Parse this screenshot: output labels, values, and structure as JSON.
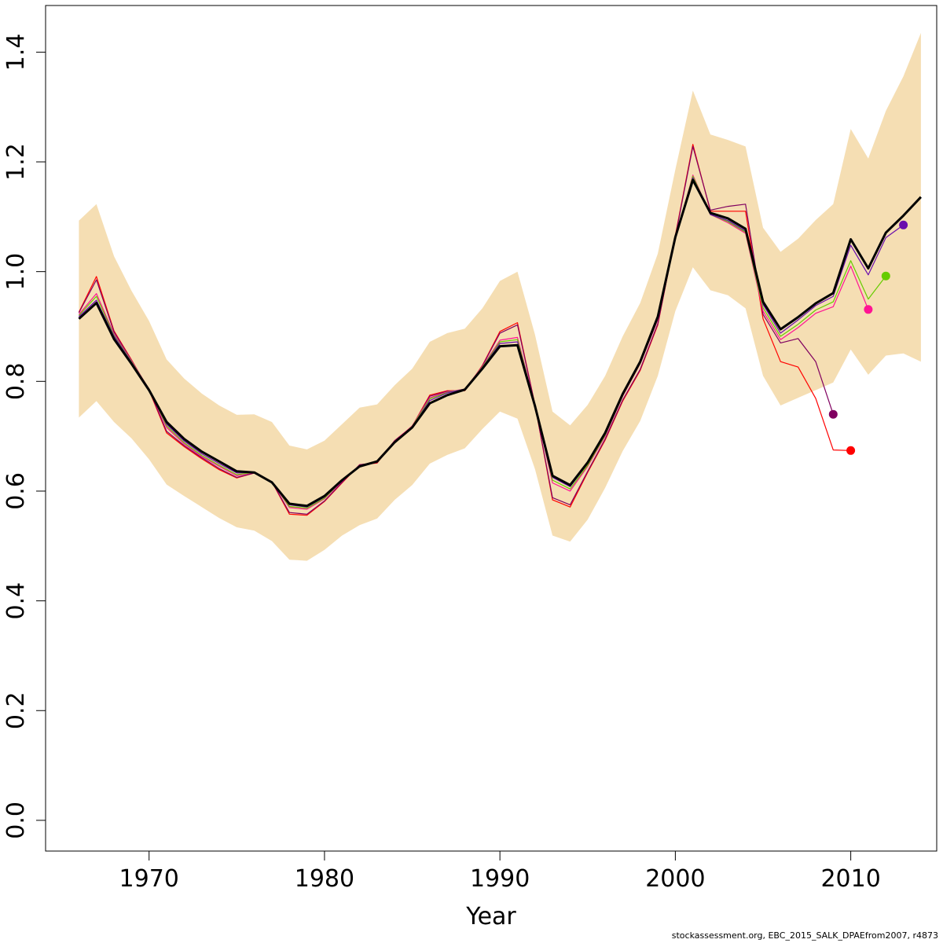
{
  "chart_data": {
    "type": "line",
    "title": "",
    "xlabel": "Year",
    "ylabel": "",
    "xlim": [
      1964.1,
      2014.9
    ],
    "ylim": [
      -0.056,
      1.485
    ],
    "x_ticks": [
      "1970",
      "1980",
      "1990",
      "2000",
      "2010"
    ],
    "y_ticks": [
      "0.0",
      "0.2",
      "0.4",
      "0.6",
      "0.8",
      "1.0",
      "1.2",
      "1.4"
    ],
    "grid": false,
    "legend": "none",
    "colors": {
      "band": "#f5deb3",
      "main": "#000000",
      "peel_2014": "#6a0dad",
      "peel_2013": "#66cc00",
      "peel_2012": "#ff1493",
      "peel_2011": "#800060",
      "peel_2010": "#ff0000"
    },
    "confidence_band": {
      "x": [
        1966,
        1967,
        1968,
        1969,
        1970,
        1971,
        1972,
        1973,
        1974,
        1975,
        1976,
        1977,
        1978,
        1979,
        1980,
        1981,
        1982,
        1983,
        1984,
        1985,
        1986,
        1987,
        1988,
        1989,
        1990,
        1991,
        1992,
        1993,
        1994,
        1995,
        1996,
        1997,
        1998,
        1999,
        2000,
        2001,
        2002,
        2003,
        2004,
        2005,
        2006,
        2007,
        2008,
        2009,
        2010,
        2011,
        2012,
        2013,
        2014
      ],
      "upper": [
        1.093,
        1.123,
        1.028,
        0.965,
        0.91,
        0.84,
        0.805,
        0.778,
        0.756,
        0.739,
        0.74,
        0.726,
        0.683,
        0.676,
        0.692,
        0.722,
        0.752,
        0.758,
        0.793,
        0.823,
        0.872,
        0.888,
        0.896,
        0.933,
        0.983,
        1.0,
        0.885,
        0.745,
        0.72,
        0.757,
        0.81,
        0.882,
        0.943,
        1.033,
        1.186,
        1.33,
        1.25,
        1.24,
        1.228,
        1.08,
        1.036,
        1.06,
        1.094,
        1.123,
        1.26,
        1.206,
        1.293,
        1.356,
        1.435
      ],
      "lower": [
        0.734,
        0.764,
        0.726,
        0.696,
        0.658,
        0.612,
        0.591,
        0.571,
        0.551,
        0.534,
        0.528,
        0.509,
        0.475,
        0.473,
        0.493,
        0.519,
        0.538,
        0.55,
        0.584,
        0.611,
        0.65,
        0.666,
        0.678,
        0.713,
        0.745,
        0.732,
        0.64,
        0.519,
        0.508,
        0.548,
        0.606,
        0.673,
        0.728,
        0.81,
        0.928,
        1.008,
        0.966,
        0.957,
        0.933,
        0.81,
        0.756,
        0.77,
        0.784,
        0.798,
        0.858,
        0.812,
        0.847,
        0.851,
        0.836
      ]
    },
    "series": [
      {
        "x": [
          1966,
          1967,
          1968,
          1969,
          1970,
          1971,
          1972,
          1973,
          1974,
          1975,
          1976,
          1977,
          1978,
          1979,
          1980,
          1981,
          1982,
          1983,
          1984,
          1985,
          1986,
          1987,
          1988,
          1989,
          1990,
          1991,
          1992,
          1993,
          1994,
          1995,
          1996,
          1997,
          1998,
          1999,
          2000,
          2001,
          2002,
          2003,
          2004,
          2005,
          2006,
          2007,
          2008,
          2009,
          2010,
          2011,
          2012,
          2013,
          2014
        ],
        "values": [
          0.914,
          0.943,
          0.877,
          0.832,
          0.784,
          0.726,
          0.695,
          0.672,
          0.654,
          0.636,
          0.634,
          0.616,
          0.577,
          0.573,
          0.591,
          0.62,
          0.645,
          0.654,
          0.689,
          0.716,
          0.76,
          0.775,
          0.785,
          0.823,
          0.864,
          0.866,
          0.755,
          0.628,
          0.611,
          0.652,
          0.706,
          0.777,
          0.836,
          0.918,
          1.063,
          1.167,
          1.107,
          1.097,
          1.078,
          0.945,
          0.895,
          0.917,
          0.942,
          0.961,
          1.059,
          1.006,
          1.071,
          1.102,
          1.136
        ],
        "color": "#000000",
        "width": 3
      },
      {
        "x": [
          1966,
          1967,
          1968,
          1969,
          1970,
          1971,
          1972,
          1973,
          1974,
          1975,
          1976,
          1977,
          1978,
          1979,
          1980,
          1981,
          1982,
          1983,
          1984,
          1985,
          1986,
          1987,
          1988,
          1989,
          1990,
          1991,
          1992,
          1993,
          1994,
          1995,
          1996,
          1997,
          1998,
          1999,
          2000,
          2001,
          2002,
          2003,
          2004,
          2005,
          2006,
          2007,
          2008,
          2009,
          2010,
          2011,
          2012,
          2013
        ],
        "values": [
          0.918,
          0.948,
          0.882,
          0.835,
          0.786,
          0.722,
          0.691,
          0.668,
          0.65,
          0.633,
          0.634,
          0.617,
          0.575,
          0.571,
          0.589,
          0.619,
          0.646,
          0.655,
          0.69,
          0.717,
          0.765,
          0.779,
          0.786,
          0.825,
          0.869,
          0.872,
          0.757,
          0.625,
          0.608,
          0.65,
          0.704,
          0.775,
          0.834,
          0.916,
          1.062,
          1.171,
          1.104,
          1.093,
          1.074,
          0.94,
          0.888,
          0.912,
          0.938,
          0.955,
          1.048,
          0.994,
          1.062,
          1.085
        ],
        "color": "#6a0dad",
        "width": 1.2,
        "end_marker": true
      },
      {
        "x": [
          1966,
          1967,
          1968,
          1969,
          1970,
          1971,
          1972,
          1973,
          1974,
          1975,
          1976,
          1977,
          1978,
          1979,
          1980,
          1981,
          1982,
          1983,
          1984,
          1985,
          1986,
          1987,
          1988,
          1989,
          1990,
          1991,
          1992,
          1993,
          1994,
          1995,
          1996,
          1997,
          1998,
          1999,
          2000,
          2001,
          2002,
          2003,
          2004,
          2005,
          2006,
          2007,
          2008,
          2009,
          2010,
          2011,
          2012
        ],
        "values": [
          0.92,
          0.955,
          0.884,
          0.836,
          0.786,
          0.719,
          0.688,
          0.665,
          0.647,
          0.63,
          0.634,
          0.617,
          0.572,
          0.569,
          0.587,
          0.619,
          0.646,
          0.655,
          0.69,
          0.718,
          0.768,
          0.78,
          0.786,
          0.826,
          0.872,
          0.876,
          0.757,
          0.62,
          0.604,
          0.647,
          0.702,
          0.774,
          0.833,
          0.914,
          1.061,
          1.174,
          1.104,
          1.091,
          1.072,
          0.934,
          0.882,
          0.904,
          0.93,
          0.945,
          1.02,
          0.95,
          0.992
        ],
        "color": "#66cc00",
        "width": 1.2,
        "end_marker": true
      },
      {
        "x": [
          1966,
          1967,
          1968,
          1969,
          1970,
          1971,
          1972,
          1973,
          1974,
          1975,
          1976,
          1977,
          1978,
          1979,
          1980,
          1981,
          1982,
          1983,
          1984,
          1985,
          1986,
          1987,
          1988,
          1989,
          1990,
          1991,
          1992,
          1993,
          1994,
          1995,
          1996,
          1997,
          1998,
          1999,
          2000,
          2001,
          2002,
          2003,
          2004,
          2005,
          2006,
          2007,
          2008,
          2009,
          2010,
          2011
        ],
        "values": [
          0.922,
          0.96,
          0.886,
          0.837,
          0.786,
          0.716,
          0.686,
          0.663,
          0.645,
          0.628,
          0.634,
          0.617,
          0.57,
          0.567,
          0.586,
          0.618,
          0.646,
          0.655,
          0.691,
          0.719,
          0.77,
          0.781,
          0.786,
          0.827,
          0.875,
          0.88,
          0.757,
          0.615,
          0.6,
          0.645,
          0.7,
          0.773,
          0.832,
          0.912,
          1.06,
          1.176,
          1.104,
          1.089,
          1.07,
          0.928,
          0.876,
          0.898,
          0.924,
          0.936,
          1.01,
          0.931
        ],
        "color": "#ff1493",
        "width": 1.2,
        "end_marker": true
      },
      {
        "x": [
          1966,
          1967,
          1968,
          1969,
          1970,
          1971,
          1972,
          1973,
          1974,
          1975,
          1976,
          1977,
          1978,
          1979,
          1980,
          1981,
          1982,
          1983,
          1984,
          1985,
          1986,
          1987,
          1988,
          1989,
          1990,
          1991,
          1992,
          1993,
          1994,
          1995,
          1996,
          1997,
          1998,
          1999,
          2000,
          2001,
          2002,
          2003,
          2004,
          2005,
          2006,
          2007,
          2008,
          2009
        ],
        "values": [
          0.925,
          0.985,
          0.89,
          0.838,
          0.785,
          0.709,
          0.683,
          0.661,
          0.641,
          0.625,
          0.633,
          0.617,
          0.561,
          0.558,
          0.582,
          0.616,
          0.648,
          0.652,
          0.692,
          0.718,
          0.773,
          0.782,
          0.784,
          0.828,
          0.888,
          0.903,
          0.757,
          0.588,
          0.575,
          0.636,
          0.695,
          0.766,
          0.822,
          0.905,
          1.064,
          1.228,
          1.112,
          1.119,
          1.123,
          0.922,
          0.87,
          0.878,
          0.836,
          0.74
        ],
        "color": "#800060",
        "width": 1.2,
        "end_marker": true
      },
      {
        "x": [
          1966,
          1967,
          1968,
          1969,
          1970,
          1971,
          1972,
          1973,
          1974,
          1975,
          1976,
          1977,
          1978,
          1979,
          1980,
          1981,
          1982,
          1983,
          1984,
          1985,
          1986,
          1987,
          1988,
          1989,
          1990,
          1991,
          1992,
          1993,
          1994,
          1995,
          1996,
          1997,
          1998,
          1999,
          2000,
          2001,
          2002,
          2003,
          2004,
          2005,
          2006,
          2007,
          2008,
          2009,
          2010
        ],
        "values": [
          0.926,
          0.991,
          0.892,
          0.839,
          0.784,
          0.706,
          0.681,
          0.659,
          0.639,
          0.624,
          0.633,
          0.617,
          0.558,
          0.556,
          0.581,
          0.615,
          0.648,
          0.651,
          0.692,
          0.718,
          0.775,
          0.783,
          0.783,
          0.829,
          0.891,
          0.907,
          0.757,
          0.584,
          0.571,
          0.634,
          0.693,
          0.764,
          0.82,
          0.903,
          1.066,
          1.232,
          1.11,
          1.11,
          1.11,
          0.914,
          0.836,
          0.826,
          0.769,
          0.675,
          0.674
        ],
        "color": "#ff0000",
        "width": 1.2,
        "end_marker": true
      }
    ]
  },
  "footer": {
    "caption": "stockassessment.org, EBC_2015_SALK_DPAEfrom2007, r4873"
  }
}
